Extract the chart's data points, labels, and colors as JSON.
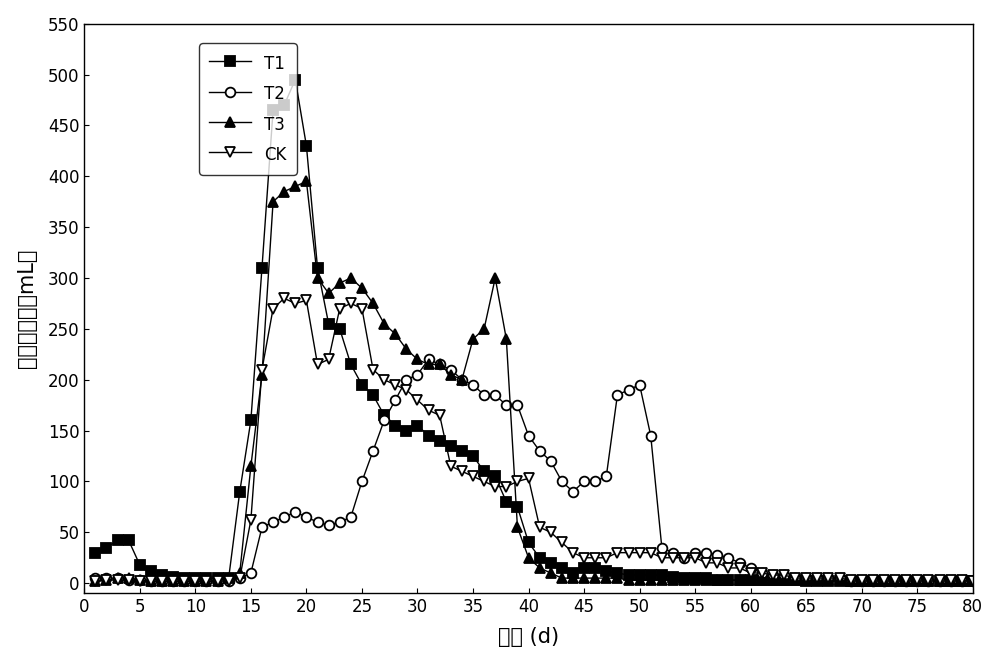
{
  "title": "",
  "xlabel": "时间 (d)",
  "ylabel": "日产甲烷量（mL）",
  "xlim": [
    0,
    80
  ],
  "ylim": [
    -10,
    550
  ],
  "xticks": [
    0,
    5,
    10,
    15,
    20,
    25,
    30,
    35,
    40,
    45,
    50,
    55,
    60,
    65,
    70,
    75,
    80
  ],
  "yticks": [
    0,
    50,
    100,
    150,
    200,
    250,
    300,
    350,
    400,
    450,
    500,
    550
  ],
  "background_color": "#ffffff",
  "series": {
    "T1": {
      "x": [
        1,
        2,
        3,
        4,
        5,
        6,
        7,
        8,
        9,
        10,
        11,
        12,
        13,
        14,
        15,
        16,
        17,
        18,
        19,
        20,
        21,
        22,
        23,
        24,
        25,
        26,
        27,
        28,
        29,
        30,
        31,
        32,
        33,
        34,
        35,
        36,
        37,
        38,
        39,
        40,
        41,
        42,
        43,
        44,
        45,
        46,
        47,
        48,
        49,
        50,
        51,
        52,
        53,
        54,
        55,
        56,
        57,
        58,
        59,
        60,
        61,
        62,
        63,
        64,
        65,
        66,
        67,
        68,
        69,
        70,
        71,
        72,
        73,
        74,
        75,
        76,
        77,
        78,
        79,
        80
      ],
      "y": [
        30,
        35,
        42,
        42,
        18,
        12,
        8,
        6,
        5,
        5,
        5,
        5,
        5,
        90,
        160,
        310,
        465,
        470,
        495,
        430,
        310,
        255,
        250,
        215,
        195,
        185,
        165,
        155,
        150,
        155,
        145,
        140,
        135,
        130,
        125,
        110,
        105,
        80,
        75,
        40,
        25,
        20,
        15,
        10,
        15,
        15,
        12,
        10,
        8,
        8,
        8,
        8,
        6,
        5,
        5,
        5,
        3,
        3,
        3,
        3,
        3,
        3,
        3,
        3,
        2,
        2,
        2,
        2,
        2,
        2,
        2,
        2,
        2,
        2,
        2,
        2,
        2,
        2,
        2,
        2
      ],
      "marker": "s",
      "color": "#000000",
      "markersize": 7,
      "fillstyle": "full",
      "label": "T1"
    },
    "T2": {
      "x": [
        1,
        2,
        3,
        4,
        5,
        6,
        7,
        8,
        9,
        10,
        11,
        12,
        13,
        14,
        15,
        16,
        17,
        18,
        19,
        20,
        21,
        22,
        23,
        24,
        25,
        26,
        27,
        28,
        29,
        30,
        31,
        32,
        33,
        34,
        35,
        36,
        37,
        38,
        39,
        40,
        41,
        42,
        43,
        44,
        45,
        46,
        47,
        48,
        49,
        50,
        51,
        52,
        53,
        54,
        55,
        56,
        57,
        58,
        59,
        60,
        61,
        62,
        63,
        64,
        65,
        66,
        67,
        68,
        69,
        70,
        71,
        72,
        73,
        74,
        75,
        76,
        77,
        78,
        79,
        80
      ],
      "y": [
        5,
        5,
        5,
        3,
        3,
        2,
        2,
        2,
        2,
        2,
        2,
        2,
        2,
        5,
        10,
        55,
        60,
        65,
        70,
        65,
        60,
        57,
        60,
        65,
        100,
        130,
        160,
        180,
        200,
        205,
        220,
        215,
        210,
        200,
        195,
        185,
        185,
        175,
        175,
        145,
        130,
        120,
        100,
        90,
        100,
        100,
        105,
        185,
        190,
        195,
        145,
        35,
        30,
        25,
        30,
        30,
        28,
        25,
        20,
        15,
        10,
        8,
        8,
        5,
        5,
        5,
        5,
        5,
        2,
        2,
        2,
        2,
        2,
        2,
        2,
        2,
        2,
        2,
        2,
        2
      ],
      "marker": "o",
      "color": "#000000",
      "markersize": 7,
      "fillstyle": "none",
      "label": "T2"
    },
    "T3": {
      "x": [
        1,
        2,
        3,
        4,
        5,
        6,
        7,
        8,
        9,
        10,
        11,
        12,
        13,
        14,
        15,
        16,
        17,
        18,
        19,
        20,
        21,
        22,
        23,
        24,
        25,
        26,
        27,
        28,
        29,
        30,
        31,
        32,
        33,
        34,
        35,
        36,
        37,
        38,
        39,
        40,
        41,
        42,
        43,
        44,
        45,
        46,
        47,
        48,
        49,
        50,
        51,
        52,
        53,
        54,
        55,
        56,
        57,
        58,
        59,
        60,
        61,
        62,
        63,
        64,
        65,
        66,
        67,
        68,
        69,
        70,
        71,
        72,
        73,
        74,
        75,
        76,
        77,
        78,
        79,
        80
      ],
      "y": [
        2,
        3,
        5,
        5,
        3,
        2,
        2,
        2,
        2,
        2,
        2,
        2,
        5,
        10,
        115,
        205,
        375,
        385,
        390,
        395,
        300,
        285,
        295,
        300,
        290,
        275,
        255,
        245,
        230,
        220,
        215,
        215,
        205,
        200,
        240,
        250,
        300,
        240,
        55,
        25,
        15,
        10,
        5,
        5,
        5,
        5,
        5,
        5,
        3,
        3,
        3,
        3,
        3,
        3,
        3,
        3,
        3,
        3,
        3,
        3,
        3,
        3,
        3,
        3,
        3,
        3,
        3,
        3,
        2,
        2,
        2,
        2,
        2,
        2,
        2,
        2,
        2,
        2,
        2,
        2
      ],
      "marker": "^",
      "color": "#000000",
      "markersize": 7,
      "fillstyle": "full",
      "label": "T3"
    },
    "CK": {
      "x": [
        1,
        2,
        3,
        4,
        5,
        6,
        7,
        8,
        9,
        10,
        11,
        12,
        13,
        14,
        15,
        16,
        17,
        18,
        19,
        20,
        21,
        22,
        23,
        24,
        25,
        26,
        27,
        28,
        29,
        30,
        31,
        32,
        33,
        34,
        35,
        36,
        37,
        38,
        39,
        40,
        41,
        42,
        43,
        44,
        45,
        46,
        47,
        48,
        49,
        50,
        51,
        52,
        53,
        54,
        55,
        56,
        57,
        58,
        59,
        60,
        61,
        62,
        63,
        64,
        65,
        66,
        67,
        68,
        69,
        70,
        71,
        72,
        73,
        74,
        75,
        76,
        77,
        78,
        79,
        80
      ],
      "y": [
        2,
        3,
        3,
        3,
        2,
        2,
        2,
        2,
        2,
        2,
        2,
        2,
        2,
        5,
        62,
        210,
        270,
        280,
        275,
        278,
        215,
        220,
        270,
        275,
        270,
        210,
        200,
        195,
        190,
        180,
        170,
        165,
        115,
        110,
        105,
        100,
        95,
        95,
        100,
        103,
        55,
        50,
        40,
        30,
        25,
        25,
        25,
        30,
        30,
        30,
        30,
        25,
        25,
        25,
        25,
        20,
        20,
        15,
        15,
        10,
        10,
        8,
        8,
        5,
        5,
        5,
        5,
        5,
        3,
        3,
        3,
        3,
        3,
        3,
        3,
        3,
        3,
        3,
        3,
        2
      ],
      "marker": "v",
      "color": "#000000",
      "markersize": 7,
      "fillstyle": "none",
      "label": "CK"
    }
  }
}
